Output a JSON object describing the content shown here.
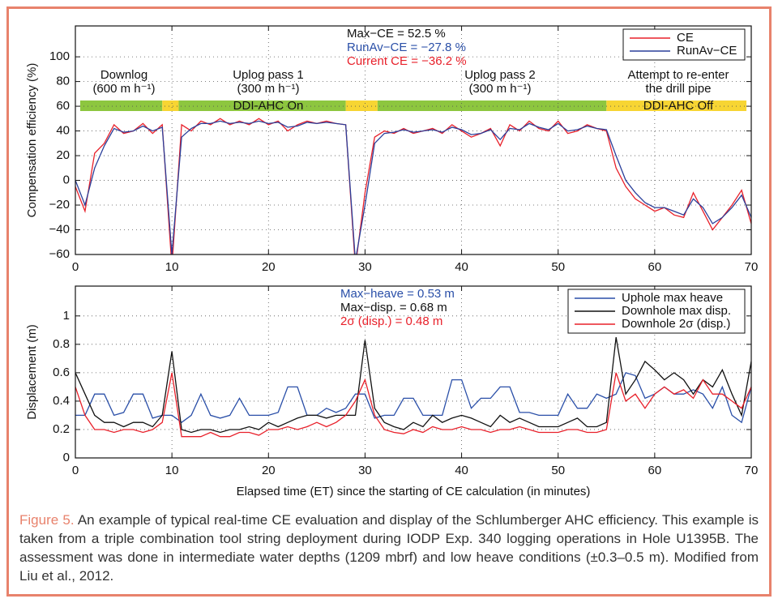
{
  "chart_data": [
    {
      "type": "line",
      "ylabel": "Compensation efficiency  (%)",
      "x": [
        0,
        1,
        2,
        3,
        4,
        5,
        6,
        7,
        8,
        9,
        10,
        11,
        12,
        13,
        14,
        15,
        16,
        17,
        18,
        19,
        20,
        21,
        22,
        23,
        24,
        25,
        26,
        27,
        28,
        29,
        30,
        31,
        32,
        33,
        34,
        35,
        36,
        37,
        38,
        39,
        40,
        41,
        42,
        43,
        44,
        45,
        46,
        47,
        48,
        49,
        50,
        51,
        52,
        53,
        54,
        55,
        56,
        57,
        58,
        59,
        60,
        61,
        62,
        63,
        64,
        65,
        66,
        67,
        68,
        69,
        70
      ],
      "xlim": [
        0,
        70
      ],
      "xticks": [
        0,
        10,
        20,
        30,
        40,
        50,
        60,
        70
      ],
      "ylim": [
        -60,
        125
      ],
      "yticks": [
        {
          "value": -60,
          "label": "−60"
        },
        {
          "value": -40,
          "label": "−40"
        },
        {
          "value": -20,
          "label": "−20"
        },
        0,
        20,
        40,
        60,
        80,
        100
      ],
      "grid": true,
      "legend": "upper right",
      "series": [
        {
          "name": "CE",
          "color": "#e8202a",
          "values": [
            -5,
            -25,
            22,
            30,
            45,
            38,
            40,
            46,
            38,
            45,
            -70,
            45,
            40,
            48,
            45,
            50,
            45,
            48,
            45,
            50,
            45,
            48,
            40,
            45,
            48,
            46,
            48,
            46,
            45,
            -70,
            -10,
            35,
            40,
            38,
            42,
            38,
            40,
            42,
            38,
            45,
            40,
            35,
            38,
            42,
            28,
            45,
            40,
            48,
            42,
            40,
            48,
            38,
            40,
            45,
            42,
            40,
            10,
            -5,
            -15,
            -20,
            -25,
            -22,
            -28,
            -30,
            -10,
            -25,
            -40,
            -30,
            -20,
            -8,
            -35
          ]
        },
        {
          "name": "RunAv−CE",
          "color": "#2a3f9a",
          "values": [
            0,
            -20,
            10,
            28,
            42,
            39,
            40,
            44,
            40,
            43,
            -60,
            35,
            42,
            46,
            46,
            48,
            46,
            47,
            46,
            48,
            46,
            47,
            43,
            44,
            47,
            46,
            47,
            46,
            45,
            -65,
            -20,
            30,
            38,
            39,
            41,
            39,
            40,
            41,
            39,
            43,
            41,
            37,
            38,
            41,
            33,
            42,
            41,
            46,
            43,
            41,
            46,
            40,
            41,
            44,
            42,
            41,
            20,
            0,
            -10,
            -18,
            -22,
            -22,
            -25,
            -28,
            -15,
            -22,
            -35,
            -30,
            -22,
            -12,
            -30
          ]
        }
      ],
      "stats": [
        {
          "text": "Max−CE    =  52.5 %",
          "color": "#111111"
        },
        {
          "text": "RunAv−CE = −27.8 %",
          "color": "#2a4fa8"
        },
        {
          "text": "Current CE = −36.2 %",
          "color": "#e8202a"
        }
      ],
      "phases": [
        {
          "lines": [
            "Downlog",
            "(600 m h⁻¹)"
          ]
        },
        {
          "lines": [
            "Uplog pass 1",
            "(300 m h⁻¹)"
          ]
        },
        {
          "lines": [
            "Uplog pass 2",
            "(300 m h⁻¹)"
          ]
        },
        {
          "lines": [
            "Attempt to re-enter",
            "the drill pipe"
          ]
        }
      ],
      "status_bars": [
        {
          "start": 0.5,
          "end": 9,
          "color": "#8dc63f"
        },
        {
          "start": 9,
          "end": 10.7,
          "color": "#f7d533"
        },
        {
          "start": 10.7,
          "end": 28,
          "color": "#8dc63f"
        },
        {
          "start": 28,
          "end": 31.3,
          "color": "#f7d533"
        },
        {
          "start": 31.3,
          "end": 55,
          "color": "#8dc63f"
        },
        {
          "start": 55,
          "end": 69.5,
          "color": "#f7d533"
        }
      ],
      "status_labels": [
        "DDI-AHC On",
        "DDI-AHC Off"
      ]
    },
    {
      "type": "line",
      "ylabel": "Displacement  (m)",
      "xlabel": "Elapsed time (ET) since the starting of CE calculation (in minutes)",
      "x": [
        0,
        1,
        2,
        3,
        4,
        5,
        6,
        7,
        8,
        9,
        10,
        11,
        12,
        13,
        14,
        15,
        16,
        17,
        18,
        19,
        20,
        21,
        22,
        23,
        24,
        25,
        26,
        27,
        28,
        29,
        30,
        31,
        32,
        33,
        34,
        35,
        36,
        37,
        38,
        39,
        40,
        41,
        42,
        43,
        44,
        45,
        46,
        47,
        48,
        49,
        50,
        51,
        52,
        53,
        54,
        55,
        56,
        57,
        58,
        59,
        60,
        61,
        62,
        63,
        64,
        65,
        66,
        67,
        68,
        69,
        70
      ],
      "xlim": [
        0,
        70
      ],
      "xticks": [
        0,
        10,
        20,
        30,
        40,
        50,
        60,
        70
      ],
      "ylim": [
        0,
        1.21
      ],
      "yticks": [
        0,
        0.2,
        0.4,
        0.6,
        0.8,
        1
      ],
      "grid": true,
      "legend": "upper right",
      "series": [
        {
          "name": "Uphole max heave",
          "color": "#2a4fa8",
          "values": [
            0.3,
            0.3,
            0.45,
            0.45,
            0.3,
            0.32,
            0.45,
            0.45,
            0.28,
            0.3,
            0.3,
            0.25,
            0.3,
            0.45,
            0.3,
            0.28,
            0.3,
            0.42,
            0.3,
            0.3,
            0.3,
            0.32,
            0.5,
            0.5,
            0.3,
            0.3,
            0.35,
            0.32,
            0.35,
            0.45,
            0.45,
            0.28,
            0.3,
            0.3,
            0.42,
            0.42,
            0.3,
            0.3,
            0.3,
            0.55,
            0.55,
            0.35,
            0.42,
            0.42,
            0.5,
            0.5,
            0.32,
            0.32,
            0.3,
            0.3,
            0.3,
            0.45,
            0.35,
            0.35,
            0.45,
            0.42,
            0.45,
            0.6,
            0.58,
            0.42,
            0.45,
            0.5,
            0.45,
            0.45,
            0.48,
            0.45,
            0.35,
            0.5,
            0.3,
            0.25,
            0.5
          ]
        },
        {
          "name": "Downhole max disp.",
          "color": "#111111",
          "values": [
            0.6,
            0.45,
            0.3,
            0.25,
            0.25,
            0.22,
            0.25,
            0.25,
            0.22,
            0.3,
            0.75,
            0.2,
            0.18,
            0.2,
            0.2,
            0.18,
            0.2,
            0.2,
            0.22,
            0.2,
            0.25,
            0.22,
            0.25,
            0.28,
            0.3,
            0.3,
            0.28,
            0.3,
            0.3,
            0.3,
            0.83,
            0.35,
            0.25,
            0.22,
            0.2,
            0.25,
            0.22,
            0.3,
            0.25,
            0.28,
            0.3,
            0.28,
            0.25,
            0.22,
            0.3,
            0.25,
            0.28,
            0.25,
            0.22,
            0.22,
            0.22,
            0.25,
            0.28,
            0.22,
            0.22,
            0.25,
            0.85,
            0.45,
            0.55,
            0.68,
            0.62,
            0.55,
            0.6,
            0.55,
            0.45,
            0.55,
            0.5,
            0.62,
            0.45,
            0.3,
            0.68
          ]
        },
        {
          "name": "Downhole 2σ (disp.)",
          "color": "#e8202a",
          "values": [
            0.5,
            0.3,
            0.2,
            0.2,
            0.18,
            0.2,
            0.2,
            0.18,
            0.2,
            0.25,
            0.6,
            0.15,
            0.15,
            0.15,
            0.18,
            0.15,
            0.15,
            0.18,
            0.18,
            0.16,
            0.2,
            0.2,
            0.22,
            0.2,
            0.22,
            0.25,
            0.22,
            0.25,
            0.3,
            0.4,
            0.55,
            0.3,
            0.2,
            0.18,
            0.17,
            0.2,
            0.18,
            0.22,
            0.2,
            0.2,
            0.22,
            0.2,
            0.2,
            0.18,
            0.2,
            0.2,
            0.22,
            0.2,
            0.18,
            0.18,
            0.18,
            0.2,
            0.2,
            0.18,
            0.18,
            0.2,
            0.6,
            0.4,
            0.45,
            0.35,
            0.45,
            0.5,
            0.45,
            0.48,
            0.42,
            0.55,
            0.45,
            0.45,
            0.4,
            0.35,
            0.5
          ]
        }
      ],
      "stats": [
        {
          "text": "Max−heave = 0.53  m",
          "color": "#2a4fa8"
        },
        {
          "text": "Max−disp.  = 0.68  m",
          "color": "#111111"
        },
        {
          "text": "2σ  (disp.)   = 0.48  m",
          "color": "#e8202a"
        }
      ]
    }
  ],
  "caption": {
    "label": "Figure 5.",
    "text": "An example of typical real-time CE evaluation and display of the Schlumberger AHC efficiency. This example is taken from a triple combination tool string deployment during IODP Exp. 340 logging operations in Hole U1395B. The assessment was done in intermediate water depths (1209 mbrf) and low heave conditions (±0.3–0.5 m). Modified from Liu et al., 2012."
  }
}
